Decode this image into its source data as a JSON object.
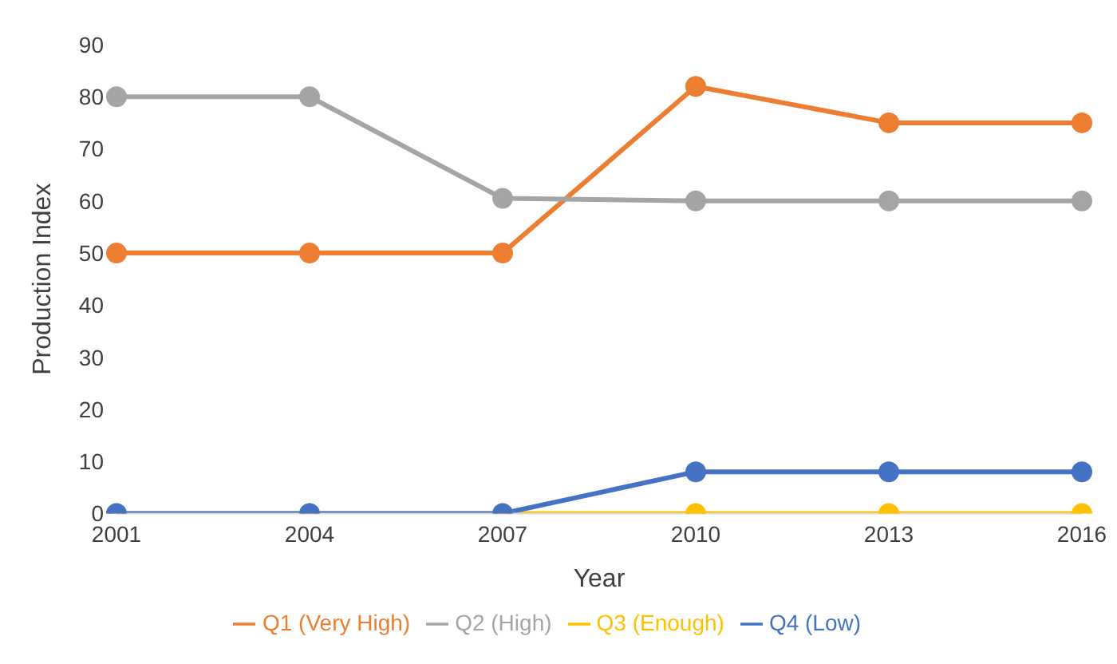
{
  "chart_data": {
    "type": "line",
    "xlabel": "Year",
    "ylabel": "Production Index",
    "categories": [
      "2001",
      "2004",
      "2007",
      "2010",
      "2013",
      "2016"
    ],
    "series": [
      {
        "name": "Q1 (Very High)",
        "color": "#ed7d31",
        "values": [
          50,
          50,
          50,
          82,
          75,
          75
        ]
      },
      {
        "name": "Q2 (High)",
        "color": "#a5a5a5",
        "values": [
          80,
          80,
          60.5,
          60,
          60,
          60
        ]
      },
      {
        "name": "Q3 (Enough)",
        "color": "#ffc000",
        "values": [
          0,
          0,
          0,
          0,
          0,
          0
        ]
      },
      {
        "name": "Q4 (Low)",
        "color": "#4472c4",
        "values": [
          0,
          0,
          0,
          8,
          8,
          8
        ]
      }
    ],
    "ylim": [
      0,
      90
    ],
    "yticks": [
      0,
      10,
      20,
      30,
      40,
      50,
      60,
      70,
      80,
      90
    ],
    "grid": false,
    "legend": "bottom",
    "marker": "circle",
    "line_style": "solid"
  }
}
